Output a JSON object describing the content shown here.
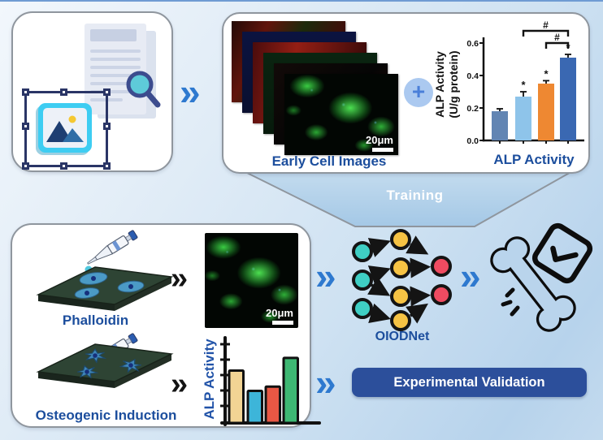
{
  "figure": {
    "training_banner_label": "Training"
  },
  "icons": {
    "chevron": "»",
    "plus": "+"
  },
  "colors": {
    "label_blue": "#1C4E9D",
    "panel_border": "#8F969E",
    "arrow_blue": "#2E79CF",
    "button_bg": "#2C4F9B",
    "nn_input": "#3FCFC4",
    "nn_hidden": "#F6C344",
    "nn_output": "#EF4B61",
    "droplet_phalloidin": "#4FC8DE",
    "droplet_osteogenic": "#F0B2CF",
    "background_top": "#EEF5FB",
    "background_bottom": "#B7D3EC"
  },
  "training_data_panel": {
    "images_label": "Early Cell Images",
    "scalebar_label": "20μm"
  },
  "experiment_panel": {
    "phalloidin_label": "Phalloidin",
    "osteogenic_label": "Osteogenic Induction",
    "scalebar_label": "20μm"
  },
  "model": {
    "label": "OIODNet"
  },
  "validation": {
    "button_label": "Experimental Validation"
  },
  "chart_data": [
    {
      "type": "bar",
      "title": "ALP Activity",
      "ylabel": "ALP Activity (U/g protein)",
      "ylabel_lines": [
        "ALP Activity",
        "(U/g protein)"
      ],
      "categories": [
        "",
        "",
        "",
        ""
      ],
      "values": [
        0.18,
        0.27,
        0.35,
        0.51
      ],
      "errors": [
        0.015,
        0.03,
        0.018,
        0.02
      ],
      "sig_labels": [
        "",
        "*",
        "*",
        "*"
      ],
      "comparisons": [
        {
          "from": 1,
          "to": 3,
          "label": "#"
        },
        {
          "from": 2,
          "to": 3,
          "label": "#"
        }
      ],
      "yticks": [
        0,
        0.2,
        0.4,
        0.6
      ],
      "yticklabels": [
        "0.0",
        "0.2",
        "0.4",
        "0.6"
      ],
      "ylim": [
        0,
        0.6
      ],
      "grid": false,
      "bar_colors": [
        "#6285B3",
        "#8EC4EA",
        "#EE8832",
        "#3A68B2"
      ]
    },
    {
      "type": "bar",
      "ylabel": "ALP Activity",
      "categories": [
        "",
        "",
        "",
        ""
      ],
      "values": [
        0.62,
        0.38,
        0.43,
        0.77
      ],
      "ylim": [
        0,
        1
      ],
      "grid": false,
      "bar_colors": [
        "#F2D494",
        "#3DB5D9",
        "#E85744",
        "#3EB873"
      ]
    }
  ]
}
